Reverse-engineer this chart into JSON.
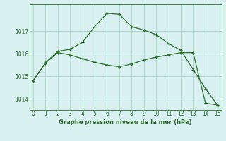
{
  "line1_x": [
    0,
    1,
    2,
    3,
    4,
    5,
    6,
    7,
    8,
    9,
    10,
    11,
    12,
    13,
    14,
    15
  ],
  "line1_y": [
    1014.8,
    1015.6,
    1016.1,
    1016.2,
    1016.5,
    1017.2,
    1017.8,
    1017.75,
    1017.2,
    1017.05,
    1016.85,
    1016.45,
    1016.15,
    1015.3,
    1014.45,
    1013.7
  ],
  "line2_x": [
    0,
    1,
    2,
    3,
    4,
    5,
    6,
    7,
    8,
    9,
    10,
    11,
    12,
    13,
    14,
    15
  ],
  "line2_y": [
    1014.8,
    1015.58,
    1016.05,
    1015.95,
    1015.78,
    1015.62,
    1015.5,
    1015.42,
    1015.55,
    1015.72,
    1015.85,
    1015.95,
    1016.05,
    1016.05,
    1013.8,
    1013.72
  ],
  "line_color": "#2d6a2d",
  "bg_color": "#d8f0f0",
  "grid_color": "#b0d8cc",
  "xlabel": "Graphe pression niveau de la mer (hPa)",
  "ylim": [
    1013.5,
    1018.2
  ],
  "xlim": [
    -0.3,
    15.3
  ],
  "yticks": [
    1014,
    1015,
    1016,
    1017
  ],
  "xticks": [
    0,
    1,
    2,
    3,
    4,
    5,
    6,
    7,
    8,
    9,
    10,
    11,
    12,
    13,
    14,
    15
  ]
}
